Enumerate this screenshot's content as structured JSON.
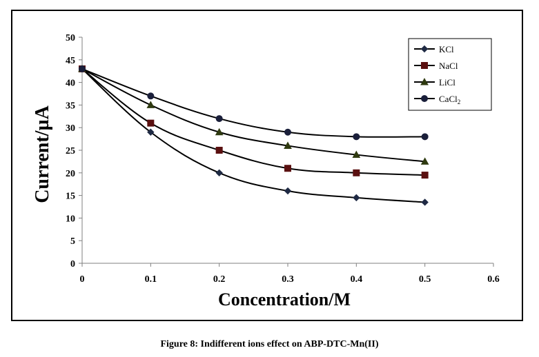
{
  "caption": "Figure 8: Indifferent ions effect on ABP-DTC-Mn(II)",
  "chart_data": {
    "type": "line",
    "title": "",
    "xlabel": "Concentration/M",
    "ylabel": "Current/µA",
    "xlim": [
      0,
      0.6
    ],
    "ylim": [
      0,
      50
    ],
    "x_ticks": [
      "0",
      "0.1",
      "0.2",
      "0.3",
      "0.4",
      "0.5",
      "0.6"
    ],
    "y_ticks": [
      "0",
      "5",
      "10",
      "15",
      "20",
      "25",
      "30",
      "35",
      "40",
      "45",
      "50"
    ],
    "grid": false,
    "smooth": true,
    "legend_position": "top-right",
    "x": [
      0,
      0.1,
      0.2,
      0.3,
      0.4,
      0.5
    ],
    "series": [
      {
        "name": "KCl",
        "name_sub": "",
        "marker": "diamond",
        "color": "#1f2a44",
        "values": [
          43,
          29,
          20,
          16,
          14.5,
          13.5
        ]
      },
      {
        "name": "NaCl",
        "name_sub": "",
        "marker": "square",
        "color": "#5a1010",
        "values": [
          43,
          31,
          25,
          21,
          20,
          19.5
        ]
      },
      {
        "name": "LiCl",
        "name_sub": "",
        "marker": "triangle",
        "color": "#2f3a10",
        "values": [
          43,
          35,
          29,
          26,
          24,
          22.5
        ]
      },
      {
        "name": "CaCl",
        "name_sub": "2",
        "marker": "circle",
        "color": "#1a1f3a",
        "values": [
          43,
          37,
          32,
          29,
          28,
          28
        ]
      }
    ]
  }
}
